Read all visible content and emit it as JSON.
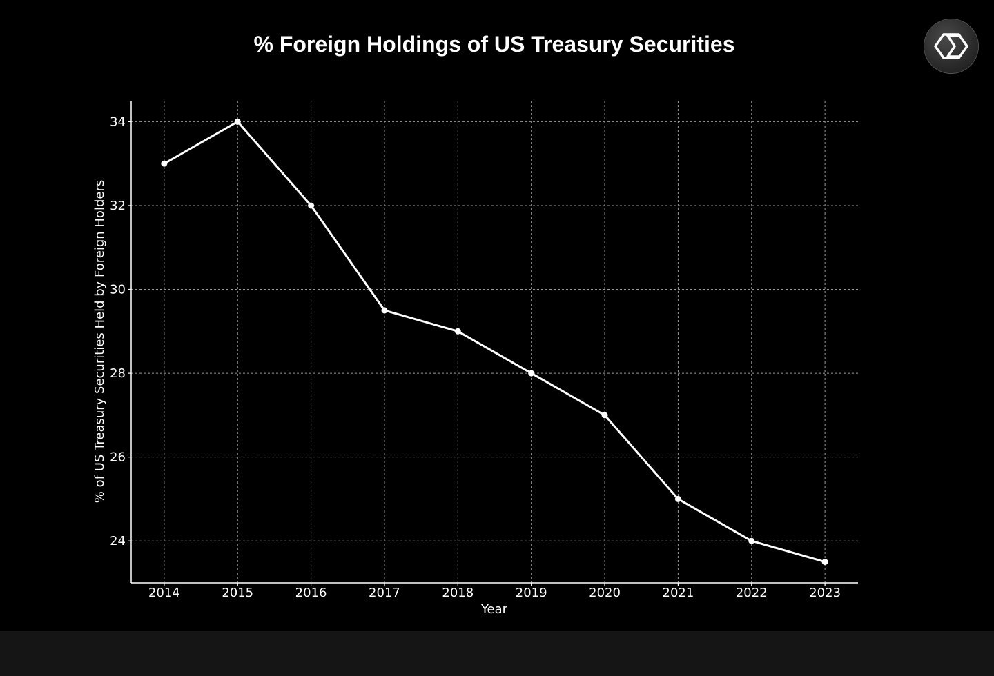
{
  "logo": {
    "icon": "sigma-hexagon-logo-icon"
  },
  "colors": {
    "background": "#000000",
    "line": "#ffffff",
    "grid": "#9a9a9a",
    "page_bottom": "#151515"
  },
  "chart_data": {
    "type": "line",
    "title": "% Foreign Holdings of US Treasury Securities",
    "xlabel": "Year",
    "ylabel": "% of US Treasury Securities Held by Foreign Holders",
    "x": [
      2014,
      2015,
      2016,
      2017,
      2018,
      2019,
      2020,
      2021,
      2022,
      2023
    ],
    "series": [
      {
        "values": [
          33,
          34,
          32,
          29.5,
          29,
          28,
          27,
          25,
          24,
          23.5
        ]
      }
    ],
    "xlim": [
      2013.55,
      2023.45
    ],
    "ylim": [
      23,
      34.5
    ],
    "yticks": [
      24,
      26,
      28,
      30,
      32,
      34
    ],
    "grid": true,
    "legend": "none"
  }
}
